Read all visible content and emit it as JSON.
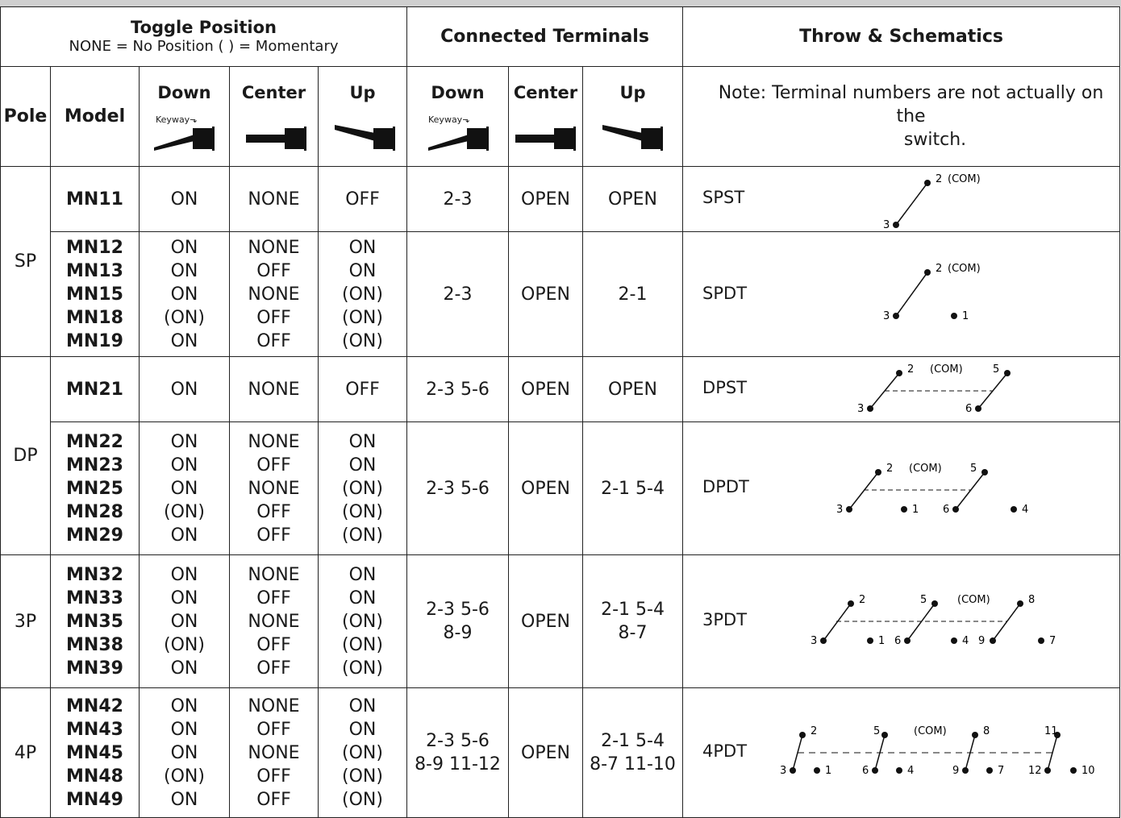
{
  "header": {
    "toggle_title": "Toggle Position",
    "toggle_sub": "NONE = No Position  ( )  =  Momentary",
    "connected": "Connected Terminals",
    "throw": "Throw & Schematics",
    "pole": "Pole",
    "model": "Model",
    "down": "Down",
    "center": "Center",
    "up": "Up",
    "keyway": "Keyway",
    "note": "Note: Terminal numbers are not actually on the",
    "note2": "switch."
  },
  "rows": [
    {
      "models": "MN11",
      "down": "ON",
      "center": "NONE",
      "up": "OFF",
      "c_down": "2-3",
      "c_center": "OPEN",
      "c_up": "OPEN",
      "throw": "SPST"
    },
    {
      "models": "MN12\nMN13\nMN15\nMN18\nMN19",
      "down": "ON\nON\nON\n(ON)\nON",
      "center": "NONE\nOFF\nNONE\nOFF\nOFF",
      "up": "ON\nON\n(ON)\n(ON)\n(ON)",
      "c_down": "2-3",
      "c_center": "OPEN",
      "c_up": "2-1",
      "throw": "SPDT"
    },
    {
      "models": "MN21",
      "down": "ON",
      "center": "NONE",
      "up": "OFF",
      "c_down": "2-3  5-6",
      "c_center": "OPEN",
      "c_up": "OPEN",
      "throw": "DPST"
    },
    {
      "models": "MN22\nMN23\nMN25\nMN28\nMN29",
      "down": "ON\nON\nON\n(ON)\nON",
      "center": "NONE\nOFF\nNONE\nOFF\nOFF",
      "up": "ON\nON\n(ON)\n(ON)\n(ON)",
      "c_down": "2-3  5-6",
      "c_center": "OPEN",
      "c_up": "2-1  5-4",
      "throw": "DPDT"
    },
    {
      "models": "MN32\nMN33\nMN35\nMN38\nMN39",
      "down": "ON\nON\nON\n(ON)\nON",
      "center": "NONE\nOFF\nNONE\nOFF\nOFF",
      "up": "ON\nON\n(ON)\n(ON)\n(ON)",
      "c_down": "2-3  5-6\n8-9",
      "c_center": "OPEN",
      "c_up": "2-1  5-4\n8-7",
      "throw": "3PDT"
    },
    {
      "models": "MN42\nMN43\nMN45\nMN48\nMN49",
      "down": "ON\nON\nON\n(ON)\nON",
      "center": "NONE\nOFF\nNONE\nOFF\nOFF",
      "up": "ON\nON\n(ON)\n(ON)\n(ON)",
      "c_down": "2-3  5-6\n8-9  11-12",
      "c_center": "OPEN",
      "c_up": "2-1  5-4\n8-7  11-10",
      "throw": "4PDT"
    }
  ],
  "poles": [
    "SP",
    "DP",
    "3P",
    "4P"
  ],
  "schematics": {
    "spst": {
      "t2": "2",
      "com": "(COM)",
      "t3": "3"
    },
    "spdt": {
      "t2": "2",
      "com": "(COM)",
      "t3": "3",
      "t1": "1"
    },
    "dpst": {
      "t2": "2",
      "com": "(COM)",
      "t5": "5",
      "t3": "3",
      "t6": "6"
    },
    "dpdt": {
      "t2": "2",
      "com": "(COM)",
      "t5": "5",
      "t3": "3",
      "t1": "1",
      "t6": "6",
      "t4": "4"
    },
    "p3dt": {
      "t2": "2",
      "t5": "5",
      "com": "(COM)",
      "t8": "8",
      "t3": "3",
      "t1": "1",
      "t6": "6",
      "t4": "4",
      "t9": "9",
      "t7": "7"
    },
    "p4dt": {
      "t2": "2",
      "t5": "5",
      "com": "(COM)",
      "t8": "8",
      "t11": "11",
      "t3": "3",
      "t1": "1",
      "t6": "6",
      "t4": "4",
      "t9": "9",
      "t7": "7",
      "t12": "12",
      "t10": "10"
    }
  }
}
